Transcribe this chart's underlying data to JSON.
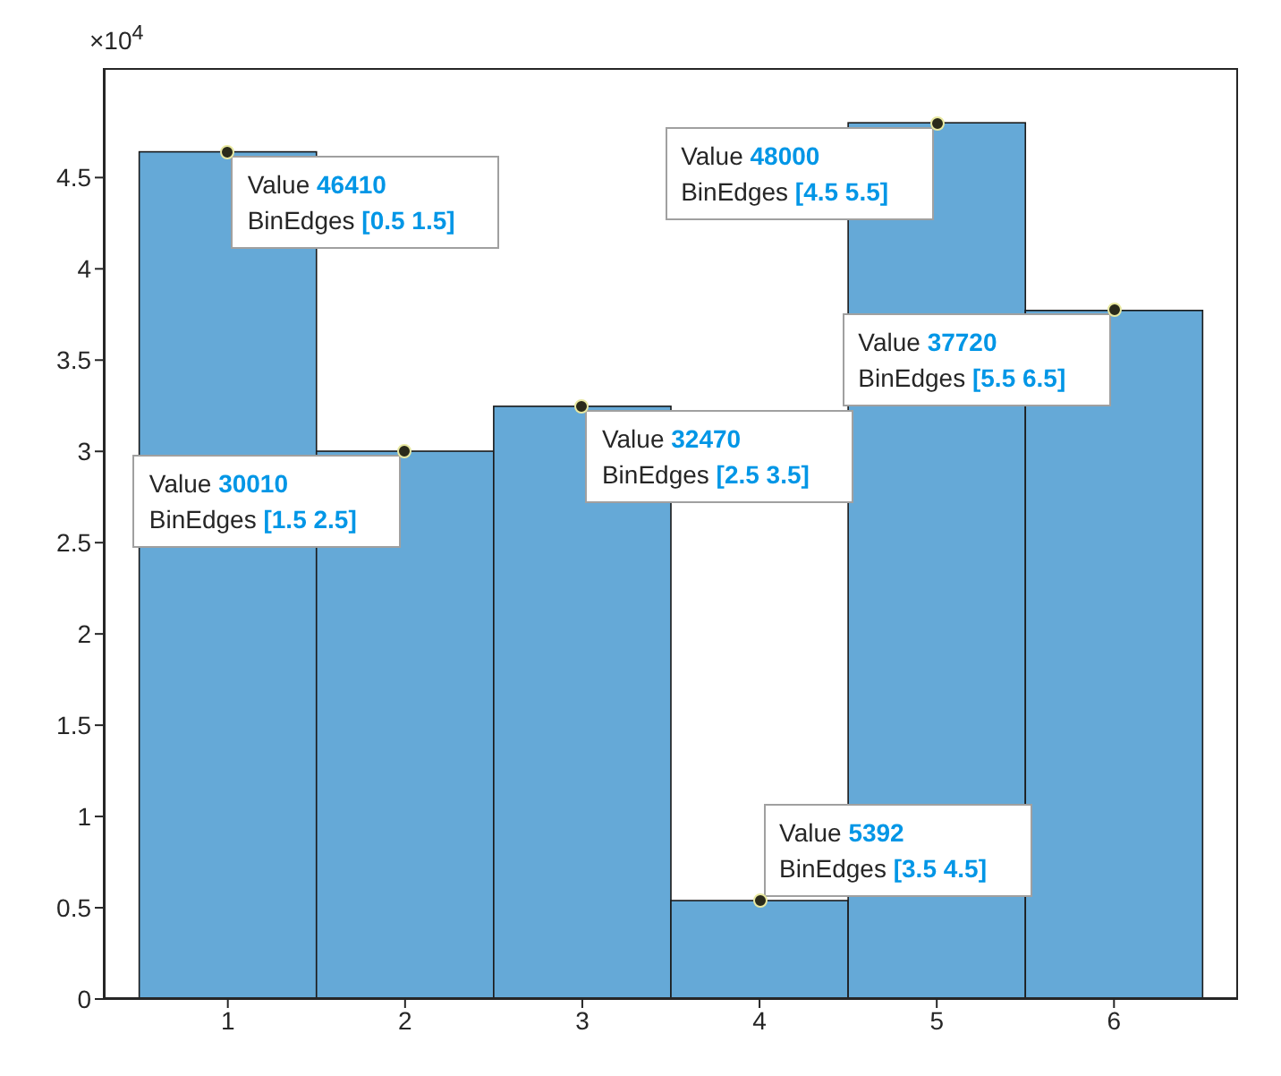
{
  "chart_data": {
    "type": "histogram",
    "bins": [
      0.5,
      1.5,
      2.5,
      3.5,
      4.5,
      5.5,
      6.5
    ],
    "values": [
      4.641,
      3.001,
      3.247,
      0.5392,
      4.8,
      3.772
    ],
    "color": "#65a9d7",
    "xlim": [
      0.3,
      6.7
    ],
    "xticks": [
      1,
      2,
      3,
      4,
      5,
      6
    ],
    "ylim": [
      0,
      5.1
    ],
    "yticks": [
      0,
      0.5,
      1,
      1.5,
      2,
      2.5,
      3,
      3.5,
      4,
      4.5
    ],
    "grid": false,
    "annotations": [
      "×10$^{4}$",
      {
        "text": "Value 46410\nBinEdges [0.5 1.5]",
        "x": 1,
        "y": 4.641
      },
      {
        "text": "Value 30010\nBinEdges [1.5 2.5]",
        "x": 2,
        "y": 3.001
      },
      {
        "text": "Value 32470\nBinEdges [2.5 3.5]",
        "x": 3,
        "y": 3.247
      },
      {
        "text": "Value 5392\nBinEdges [3.5 4.5]",
        "x": 4,
        "y": 0.5392
      },
      {
        "text": "Value 48000\nBinEdges [4.5 5.5]",
        "x": 5,
        "y": 4.8
      },
      {
        "text": "Value 37720\nBinEdges [5.5 6.5]",
        "x": 6,
        "y": 3.772
      }
    ]
  }
}
